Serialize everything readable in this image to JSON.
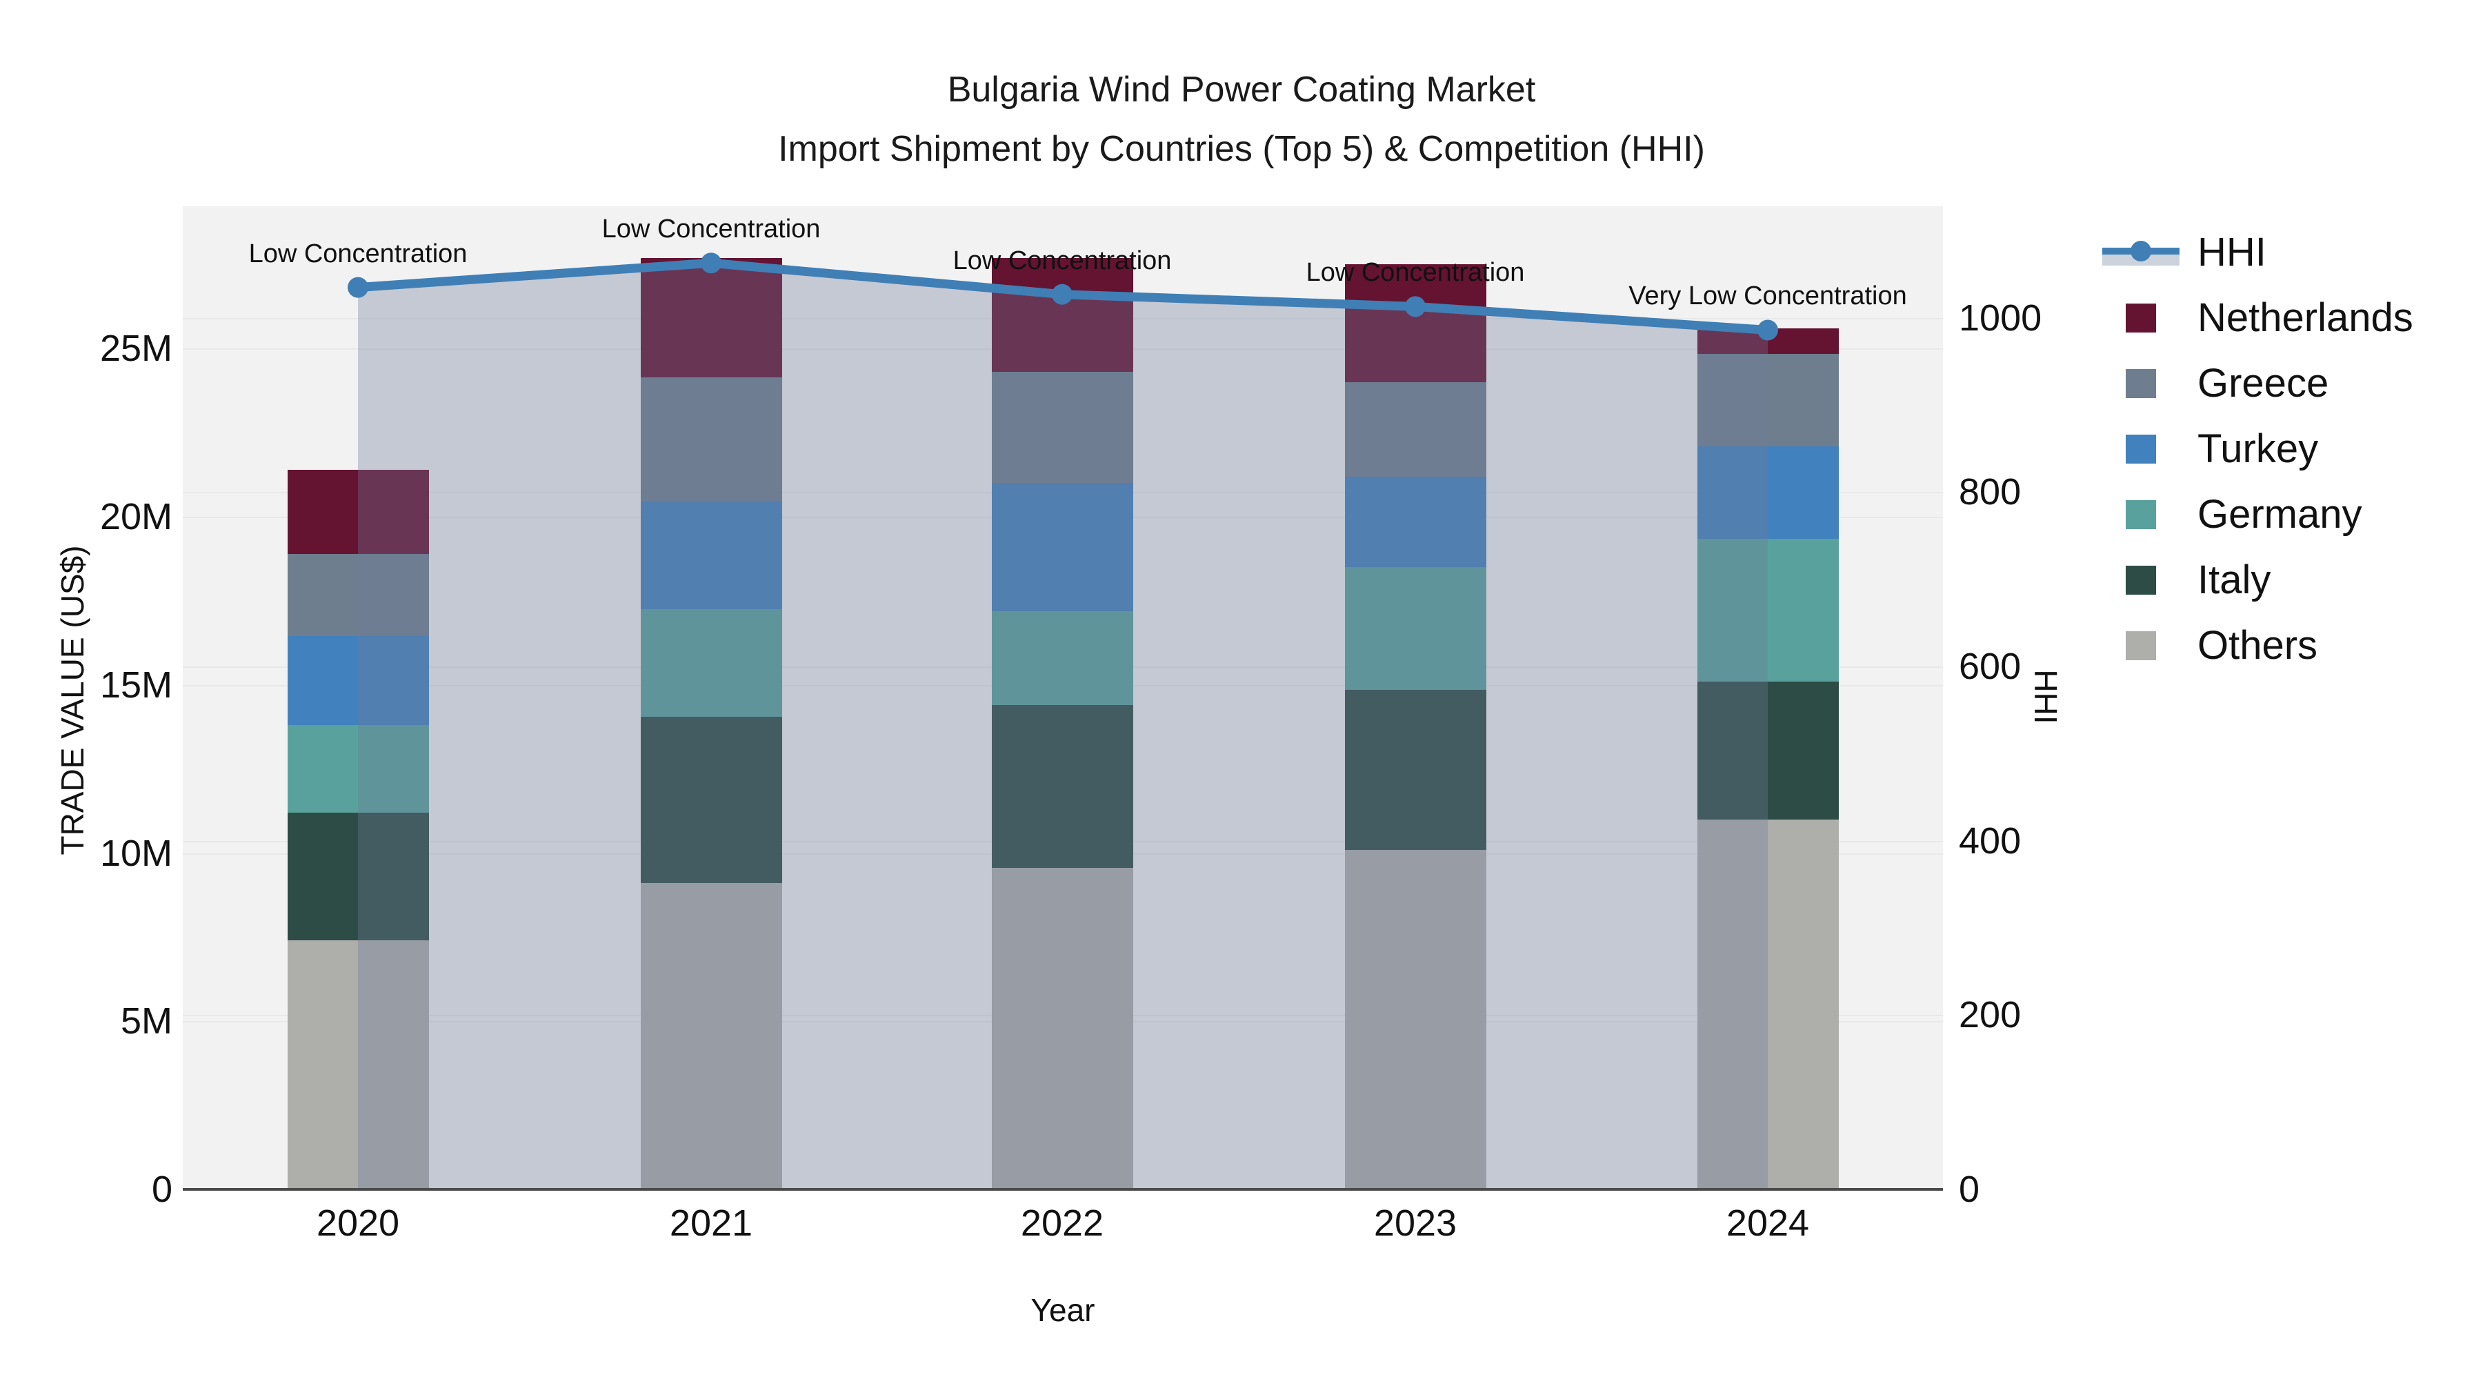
{
  "title": {
    "line1": "Bulgaria Wind Power Coating Market",
    "line2": "Import Shipment by Countries (Top 5) & Competition (HHI)"
  },
  "axes": {
    "x": {
      "label": "Year"
    },
    "y_left": {
      "label": "TRADE VALUE (US$)",
      "ticks": [
        "0",
        "5M",
        "10M",
        "15M",
        "20M",
        "25M"
      ],
      "tick_values_millions": [
        0,
        5,
        10,
        15,
        20,
        25
      ]
    },
    "y_right": {
      "label": "HHI",
      "ticks": [
        "0",
        "200",
        "400",
        "600",
        "800",
        "1000"
      ],
      "tick_values": [
        0,
        200,
        400,
        600,
        800,
        1000
      ]
    }
  },
  "legend": {
    "order": [
      "HHI",
      "Netherlands",
      "Greece",
      "Turkey",
      "Germany",
      "Italy",
      "Others"
    ]
  },
  "chart_data": {
    "type": "combo-stacked-bar-with-line",
    "categories": [
      "2020",
      "2021",
      "2022",
      "2023",
      "2024"
    ],
    "bar_unit": "million US$",
    "series": [
      {
        "name": "Netherlands",
        "color": "#641331",
        "values": [
          2.5,
          3.55,
          3.4,
          3.5,
          0.75
        ]
      },
      {
        "name": "Greece",
        "color": "#6e7e8e",
        "values": [
          2.45,
          3.7,
          3.3,
          2.8,
          2.75
        ]
      },
      {
        "name": "Turkey",
        "color": "#4181bd",
        "values": [
          2.65,
          3.2,
          3.8,
          2.7,
          2.75
        ]
      },
      {
        "name": "Germany",
        "color": "#59a19d",
        "values": [
          2.6,
          3.2,
          2.8,
          3.65,
          4.25
        ]
      },
      {
        "name": "Italy",
        "color": "#2d4c45",
        "values": [
          3.8,
          4.95,
          4.85,
          4.75,
          4.1
        ]
      },
      {
        "name": "Others",
        "color": "#aeaeaa",
        "values": [
          7.4,
          9.1,
          9.55,
          10.1,
          11.0
        ]
      }
    ],
    "bar_totals_millions": [
      21.4,
      27.7,
      27.7,
      27.5,
      25.6
    ],
    "line_series": {
      "name": "HHI",
      "color": "#3f7fb5",
      "area_fill": "rgba(111,123,153,0.34)",
      "values": [
        1035,
        1063,
        1027,
        1013,
        986
      ]
    },
    "annotations": [
      "Low Concentration",
      "Low Concentration",
      "Low Concentration",
      "Low Concentration",
      "Very Low Concentration"
    ],
    "y_left_range_millions": [
      0,
      29.23
    ],
    "y_right_range": [
      0,
      1128
    ],
    "grid": "both-axes-horizontal"
  }
}
